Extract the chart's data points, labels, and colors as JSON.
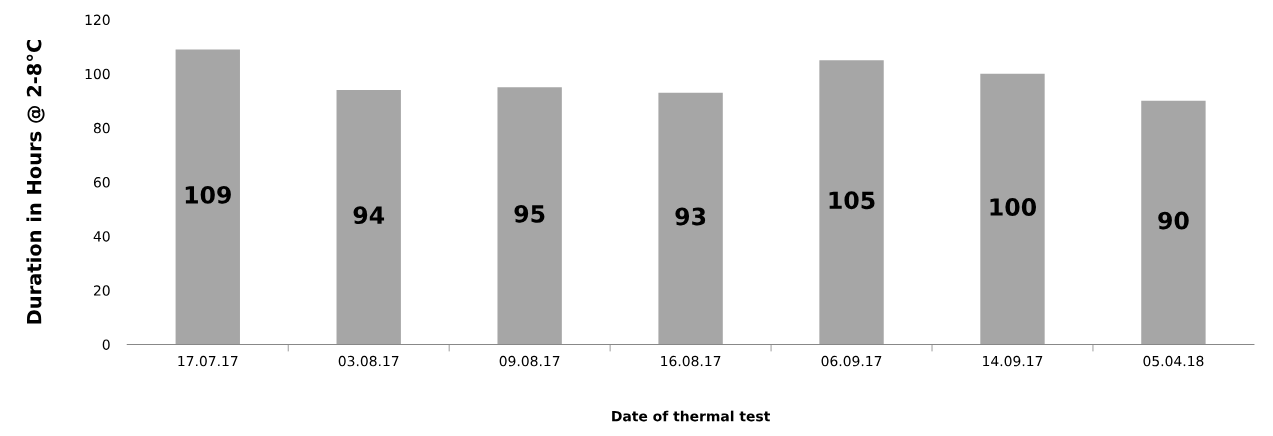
{
  "chart_data": {
    "type": "bar",
    "xlabel": "Date of thermal test",
    "ylabel": "Duration in Hours @ 2-8°C",
    "categories": [
      "17.07.17",
      "03.08.17",
      "09.08.17",
      "16.08.17",
      "06.09.17",
      "14.09.17",
      "05.04.18"
    ],
    "values": [
      109,
      94,
      95,
      93,
      105,
      100,
      90
    ],
    "color": "#a6a6a6",
    "ylim": [
      0,
      120
    ],
    "yticks": [
      0,
      20,
      40,
      60,
      80,
      100,
      120
    ],
    "grid": false,
    "data_labels": true
  }
}
